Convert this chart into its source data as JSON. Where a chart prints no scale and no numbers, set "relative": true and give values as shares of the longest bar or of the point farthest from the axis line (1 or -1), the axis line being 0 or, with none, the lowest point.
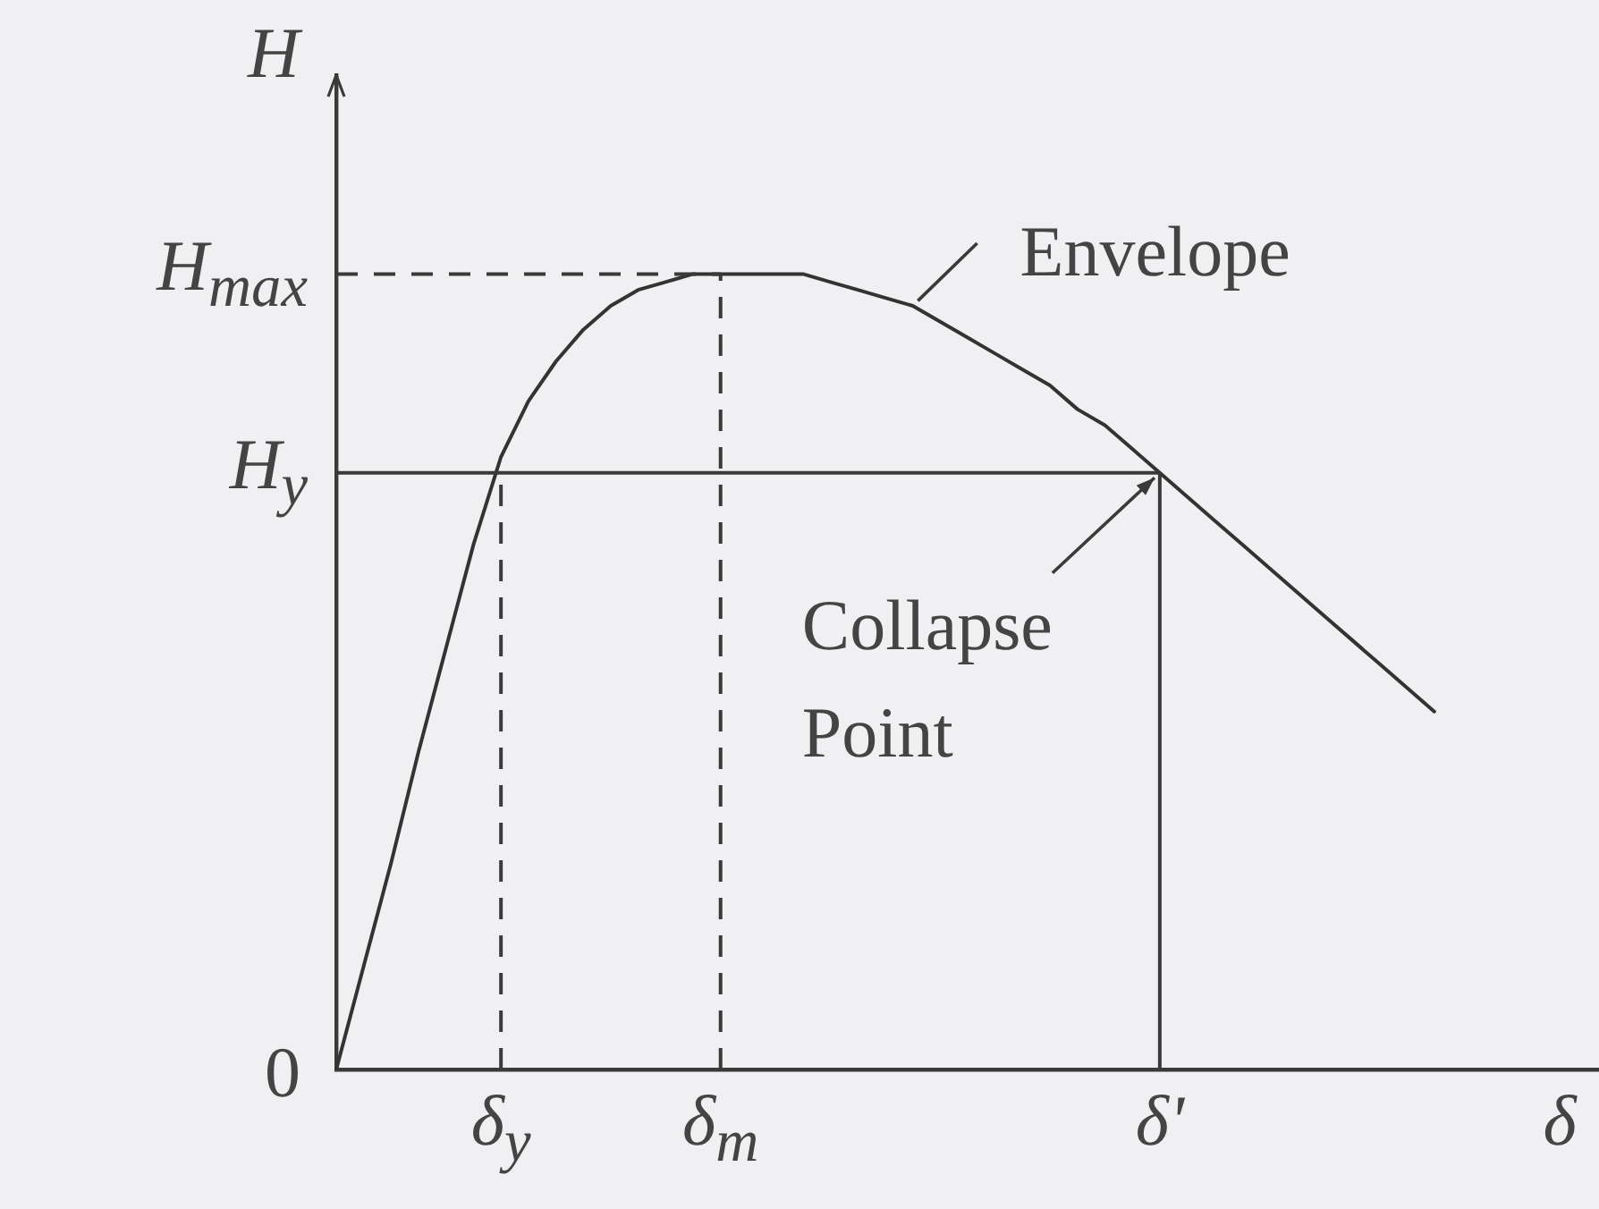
{
  "chart_data": {
    "type": "line",
    "relative": true,
    "xlabel": "δ",
    "ylabel": "H",
    "categories": [
      null,
      null,
      null,
      null,
      null,
      null,
      "δ$_{y}$",
      null,
      null,
      null,
      null,
      null,
      null,
      null,
      "δ$_{m}$",
      null,
      null,
      null,
      null,
      null,
      null,
      null,
      null,
      null,
      null,
      null,
      null,
      null,
      null,
      null,
      "δ'",
      null,
      null,
      null,
      null,
      null,
      null,
      null,
      null,
      null,
      null,
      null,
      null,
      null,
      null,
      null,
      null
    ],
    "series": [
      {
        "color": "#333333",
        "values": [
          0,
          0.13,
          0.26,
          0.4,
          0.53,
          0.66,
          0.77,
          0.84,
          0.89,
          0.93,
          0.96,
          0.98,
          0.99,
          1.0,
          1.0,
          1.0,
          1.0,
          1.0,
          0.99,
          0.98,
          0.97,
          0.96,
          0.94,
          0.92,
          0.9,
          0.88,
          0.86,
          0.83,
          0.81,
          0.78,
          0.75,
          0.72,
          0.69,
          0.66,
          0.63,
          0.6,
          0.57,
          0.54,
          0.51,
          0.48,
          0.45,
          null,
          null,
          null,
          null,
          null,
          null
        ]
      }
    ],
    "ref_lines": [
      {
        "axis": "y",
        "value": 1.0,
        "label": "H$_{max}$",
        "line_style": "dashed"
      },
      {
        "axis": "y",
        "value": 0.75,
        "label": "H$_{y}$",
        "line_style": "solid"
      },
      {
        "axis": "x",
        "value": "δ$_{y}$",
        "line_style": "dashed"
      },
      {
        "axis": "x",
        "value": "δ$_{m}$",
        "line_style": "dashed"
      },
      {
        "axis": "x",
        "value": "δ'",
        "line_style": "solid"
      }
    ],
    "annotations": [
      "0",
      "Envelope",
      {
        "text": "Collapse Point",
        "x": "δ'",
        "y": 0.75
      }
    ]
  }
}
